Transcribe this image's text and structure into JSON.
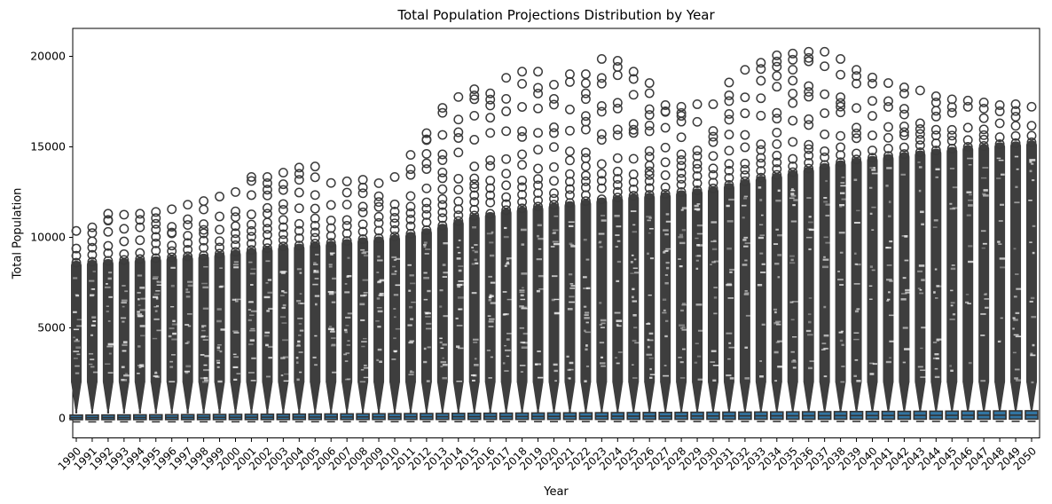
{
  "title": "Total Population Projections Distribution by Year",
  "xlabel": "Year",
  "ylabel": "Total Population",
  "chart_data": {
    "type": "boxplot",
    "title": "Total Population Projections Distribution by Year",
    "xlabel": "Year",
    "ylabel": "Total Population",
    "ylim": [
      -1050,
      21550
    ],
    "yticks": [
      0,
      5000,
      10000,
      15000,
      20000
    ],
    "grid": false,
    "legend": "none",
    "categories": [
      "1990",
      "1991",
      "1992",
      "1993",
      "1994",
      "1995",
      "1996",
      "1997",
      "1998",
      "1999",
      "2000",
      "2001",
      "2002",
      "2003",
      "2004",
      "2005",
      "2006",
      "2007",
      "2008",
      "2009",
      "2010",
      "2011",
      "2012",
      "2013",
      "2014",
      "2015",
      "2016",
      "2017",
      "2018",
      "2019",
      "2020",
      "2021",
      "2022",
      "2023",
      "2024",
      "2025",
      "2026",
      "2027",
      "2028",
      "2029",
      "2030",
      "2031",
      "2032",
      "2033",
      "2034",
      "2035",
      "2036",
      "2037",
      "2038",
      "2039",
      "2040",
      "2041",
      "2042",
      "2043",
      "2044",
      "2045",
      "2046",
      "2047",
      "2048",
      "2049",
      "2050"
    ],
    "box_stats": {
      "q1_range_1990_to_2050": [
        -70,
        -40
      ],
      "median_range_1990_to_2050": [
        40,
        180
      ],
      "q3_range_1990_to_2050": [
        180,
        420
      ],
      "whisker_low_range_1990_to_2050": [
        -200,
        -170
      ],
      "whisker_high_range_1990_to_2050": [
        1200,
        1600
      ]
    },
    "fliers": {
      "max": [
        10600,
        10800,
        11550,
        11500,
        11550,
        11650,
        11800,
        12050,
        12250,
        12500,
        12750,
        13580,
        13580,
        13820,
        14100,
        14160,
        13250,
        13340,
        13430,
        13240,
        13580,
        14800,
        16000,
        17400,
        18000,
        18430,
        18200,
        19060,
        19400,
        19400,
        18680,
        19260,
        19260,
        20100,
        20000,
        19400,
        18770,
        17550,
        17460,
        17600,
        17600,
        18800,
        19500,
        19890,
        20300,
        20400,
        20500,
        20500,
        20100,
        19500,
        19080,
        18770,
        18530,
        18360,
        18040,
        17870,
        17800,
        17700,
        17550,
        17600,
        17460
      ],
      "scatter_top": [
        9700,
        9800,
        9900,
        10000,
        10100,
        10200,
        10300,
        10400,
        10500,
        10600,
        10800,
        11000,
        11100,
        11200,
        11000,
        11300,
        11200,
        11300,
        11400,
        11300,
        11500,
        11800,
        12100,
        12400,
        12700,
        13000,
        12900,
        13200,
        13400,
        13300,
        13400,
        13600,
        13600,
        13800,
        13700,
        13700,
        13600,
        13500,
        13600,
        13800,
        13900,
        14200,
        14400,
        14600,
        14700,
        14600,
        14900,
        15100,
        15000,
        15000,
        15000,
        15200,
        15300,
        15400,
        15500,
        15600,
        15700,
        15750,
        15800,
        15800,
        15850
      ],
      "dense_top": [
        8700,
        8750,
        8800,
        8850,
        8900,
        8950,
        9000,
        9050,
        9100,
        9200,
        9300,
        9400,
        9500,
        9600,
        9650,
        9750,
        9800,
        9900,
        10000,
        10050,
        10150,
        10300,
        10500,
        10750,
        11000,
        11300,
        11400,
        11600,
        11700,
        11800,
        11900,
        12000,
        12100,
        12200,
        12300,
        12400,
        12450,
        12500,
        12600,
        12700,
        12800,
        13000,
        13200,
        13400,
        13550,
        13700,
        13900,
        14100,
        14250,
        14400,
        14500,
        14600,
        14700,
        14800,
        14900,
        15000,
        15100,
        15150,
        15250,
        15300,
        15350
      ]
    },
    "colors": {
      "box_fill": "#3274a1",
      "box_edge": "#333333",
      "flier_edge": "#3b3b3b",
      "dense_fill": "#3e3e3e",
      "spine": "#000000",
      "text": "#000000"
    }
  }
}
